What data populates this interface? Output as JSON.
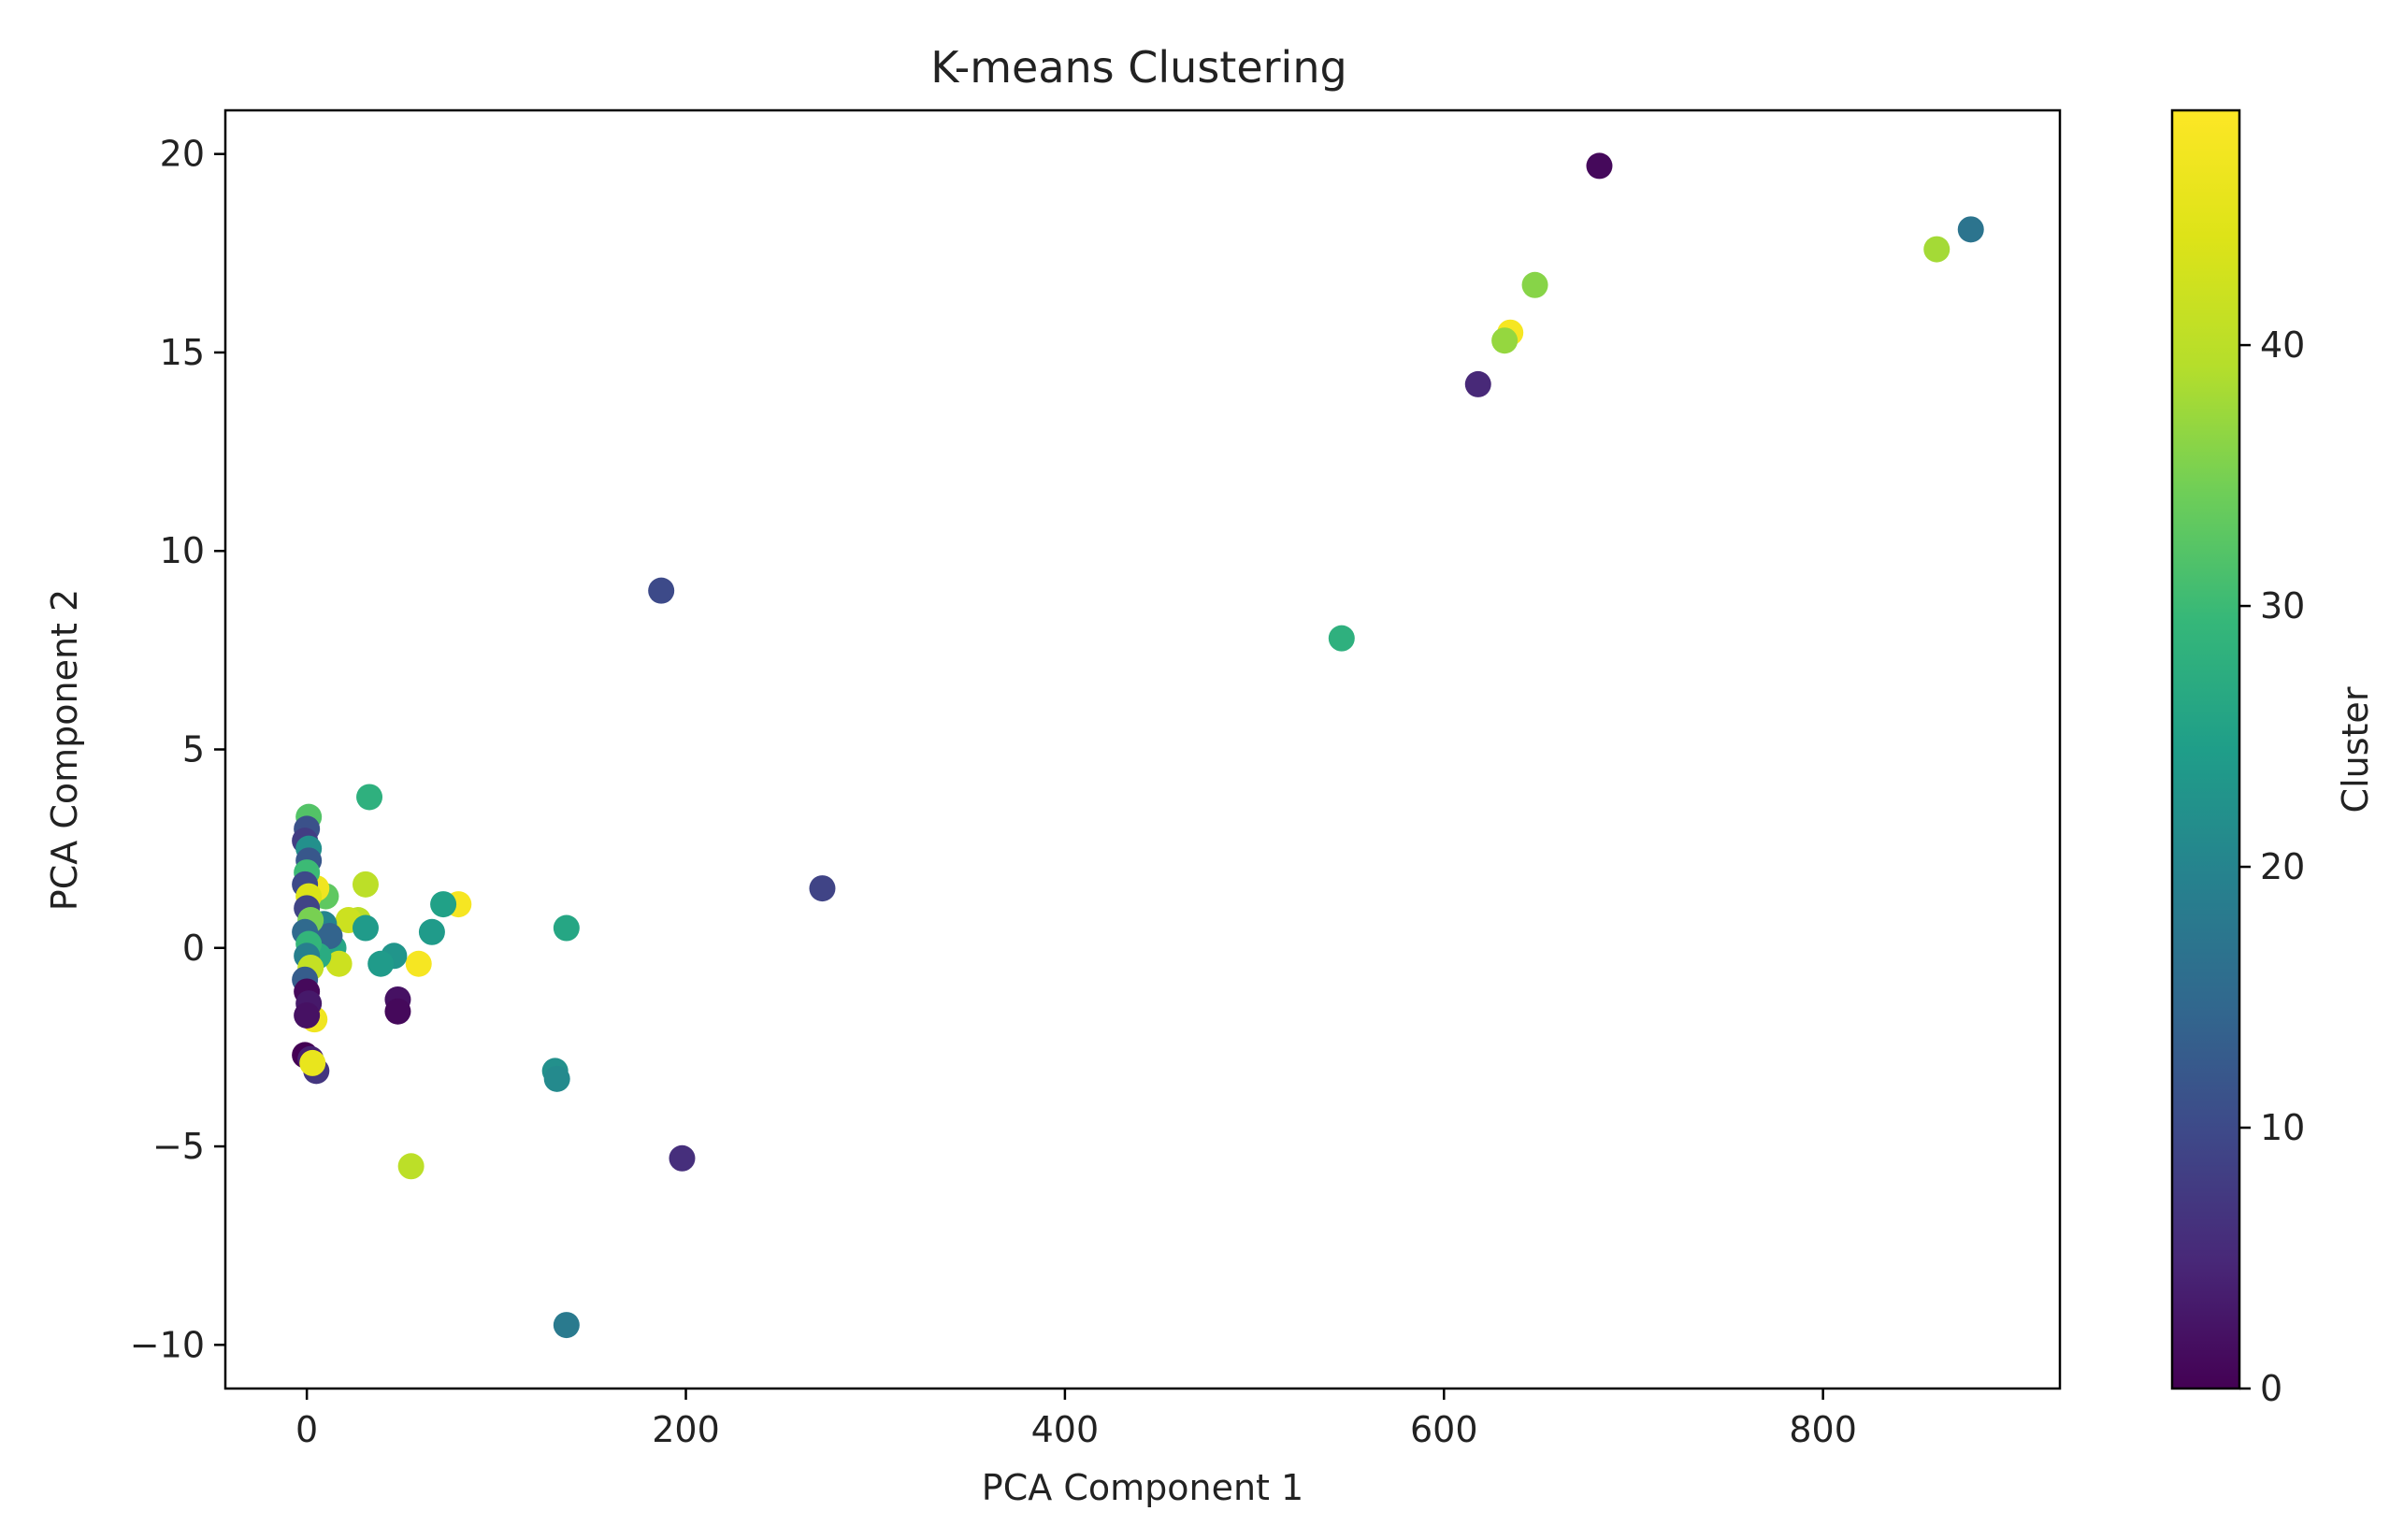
{
  "chart_data": {
    "type": "scatter",
    "title": "K-means Clustering",
    "xlabel": "PCA Component 1",
    "ylabel": "PCA Component 2",
    "xlim": [
      -43,
      925
    ],
    "ylim": [
      -11.1,
      21.1
    ],
    "xticks": [
      0,
      200,
      400,
      600,
      800
    ],
    "yticks": [
      -10,
      -5,
      0,
      5,
      10,
      15,
      20
    ],
    "grid": false,
    "colorbar": {
      "label": "Cluster",
      "range": [
        0,
        49
      ],
      "ticks": [
        0,
        10,
        20,
        30,
        40
      ],
      "colormap": "viridis"
    },
    "points": [
      {
        "x": 682,
        "y": 19.7,
        "cluster": 1
      },
      {
        "x": 878,
        "y": 18.1,
        "cluster": 17
      },
      {
        "x": 860,
        "y": 17.6,
        "cluster": 38
      },
      {
        "x": 648,
        "y": 16.7,
        "cluster": 36
      },
      {
        "x": 635,
        "y": 15.5,
        "cluster": 48
      },
      {
        "x": 632,
        "y": 15.3,
        "cluster": 37
      },
      {
        "x": 618,
        "y": 14.2,
        "cluster": 5
      },
      {
        "x": 546,
        "y": 7.8,
        "cluster": 28
      },
      {
        "x": 187,
        "y": 9.0,
        "cluster": 10
      },
      {
        "x": 272,
        "y": 1.5,
        "cluster": 9
      },
      {
        "x": 198,
        "y": -5.3,
        "cluster": 6
      },
      {
        "x": 137,
        "y": -9.5,
        "cluster": 18
      },
      {
        "x": 137,
        "y": 0.5,
        "cluster": 26
      },
      {
        "x": 131,
        "y": -3.1,
        "cluster": 22
      },
      {
        "x": 132,
        "y": -3.3,
        "cluster": 21
      },
      {
        "x": 55,
        "y": -5.5,
        "cluster": 40
      },
      {
        "x": 33,
        "y": 3.8,
        "cluster": 28
      },
      {
        "x": 31,
        "y": 1.6,
        "cluster": 40
      },
      {
        "x": 80,
        "y": 1.1,
        "cluster": 48
      },
      {
        "x": 72,
        "y": 1.1,
        "cluster": 25
      },
      {
        "x": 66,
        "y": 0.4,
        "cluster": 24
      },
      {
        "x": 59,
        "y": -0.4,
        "cluster": 48
      },
      {
        "x": 46,
        "y": -0.2,
        "cluster": 23
      },
      {
        "x": 39,
        "y": -0.4,
        "cluster": 24
      },
      {
        "x": 48,
        "y": -1.3,
        "cluster": 2
      },
      {
        "x": 48,
        "y": -1.6,
        "cluster": 1
      },
      {
        "x": 27,
        "y": 0.7,
        "cluster": 40
      },
      {
        "x": 22,
        "y": 0.7,
        "cluster": 42
      },
      {
        "x": 31,
        "y": 0.5,
        "cluster": 24
      },
      {
        "x": 14,
        "y": 0.0,
        "cluster": 26
      },
      {
        "x": 17,
        "y": -0.4,
        "cluster": 42
      },
      {
        "x": 10,
        "y": 1.3,
        "cluster": 33
      },
      {
        "x": 9,
        "y": 0.6,
        "cluster": 20
      },
      {
        "x": 12,
        "y": 0.3,
        "cluster": 14
      },
      {
        "x": 6,
        "y": -0.2,
        "cluster": 27
      },
      {
        "x": 5,
        "y": 1.5,
        "cluster": 47
      },
      {
        "x": 4,
        "y": -1.8,
        "cluster": 47
      },
      {
        "x": 5,
        "y": -3.1,
        "cluster": 7
      },
      {
        "x": 1,
        "y": 3.3,
        "cluster": 32
      },
      {
        "x": 0,
        "y": 3.0,
        "cluster": 11
      },
      {
        "x": -1,
        "y": 2.7,
        "cluster": 8
      },
      {
        "x": 1,
        "y": 2.5,
        "cluster": 22
      },
      {
        "x": 1,
        "y": 2.2,
        "cluster": 12
      },
      {
        "x": 0,
        "y": 1.9,
        "cluster": 30
      },
      {
        "x": -1,
        "y": 1.6,
        "cluster": 10
      },
      {
        "x": 1,
        "y": 1.3,
        "cluster": 44
      },
      {
        "x": 0,
        "y": 1.0,
        "cluster": 9
      },
      {
        "x": 2,
        "y": 0.7,
        "cluster": 35
      },
      {
        "x": -1,
        "y": 0.4,
        "cluster": 15
      },
      {
        "x": 1,
        "y": 0.1,
        "cluster": 29
      },
      {
        "x": 0,
        "y": -0.2,
        "cluster": 19
      },
      {
        "x": 2,
        "y": -0.5,
        "cluster": 41
      },
      {
        "x": -1,
        "y": -0.8,
        "cluster": 13
      },
      {
        "x": 0,
        "y": -1.1,
        "cluster": 1
      },
      {
        "x": 1,
        "y": -1.4,
        "cluster": 3
      },
      {
        "x": 0,
        "y": -1.7,
        "cluster": 2
      },
      {
        "x": -1,
        "y": -2.7,
        "cluster": 0
      },
      {
        "x": 2,
        "y": -2.8,
        "cluster": 4
      },
      {
        "x": 3,
        "y": -2.9,
        "cluster": 46
      }
    ]
  }
}
